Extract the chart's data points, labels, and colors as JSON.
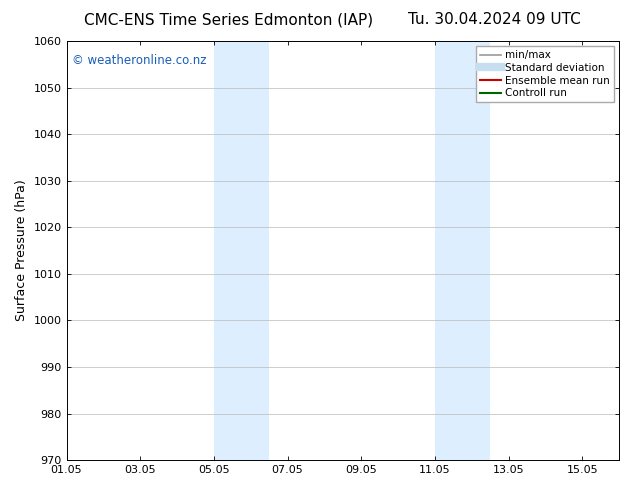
{
  "title_left": "CMC-ENS Time Series Edmonton (IAP)",
  "title_right": "Tu. 30.04.2024 09 UTC",
  "ylabel": "Surface Pressure (hPa)",
  "ylim": [
    970,
    1060
  ],
  "yticks": [
    970,
    980,
    990,
    1000,
    1010,
    1020,
    1030,
    1040,
    1050,
    1060
  ],
  "xlim": [
    0,
    15
  ],
  "xtick_labels": [
    "01.05",
    "03.05",
    "05.05",
    "07.05",
    "09.05",
    "11.05",
    "13.05",
    "15.05"
  ],
  "xtick_positions": [
    0,
    2,
    4,
    6,
    8,
    10,
    12,
    14
  ],
  "shaded_regions": [
    {
      "x_start": 4.0,
      "x_end": 5.5,
      "color": "#ddeeff",
      "alpha": 1.0
    },
    {
      "x_start": 10.0,
      "x_end": 11.5,
      "color": "#ddeeff",
      "alpha": 1.0
    }
  ],
  "watermark_text": "© weatheronline.co.nz",
  "watermark_color": "#1a5eb8",
  "watermark_fontsize": 8.5,
  "legend_items": [
    {
      "label": "min/max",
      "color": "#999999",
      "lw": 1.2
    },
    {
      "label": "Standard deviation",
      "color": "#c5dff0",
      "lw": 6
    },
    {
      "label": "Ensemble mean run",
      "color": "#cc0000",
      "lw": 1.5
    },
    {
      "label": "Controll run",
      "color": "#006600",
      "lw": 1.5
    }
  ],
  "bg_color": "#ffffff",
  "grid_color": "#bbbbbb",
  "title_fontsize": 11,
  "ylabel_fontsize": 9,
  "tick_fontsize": 8,
  "legend_fontsize": 7.5
}
